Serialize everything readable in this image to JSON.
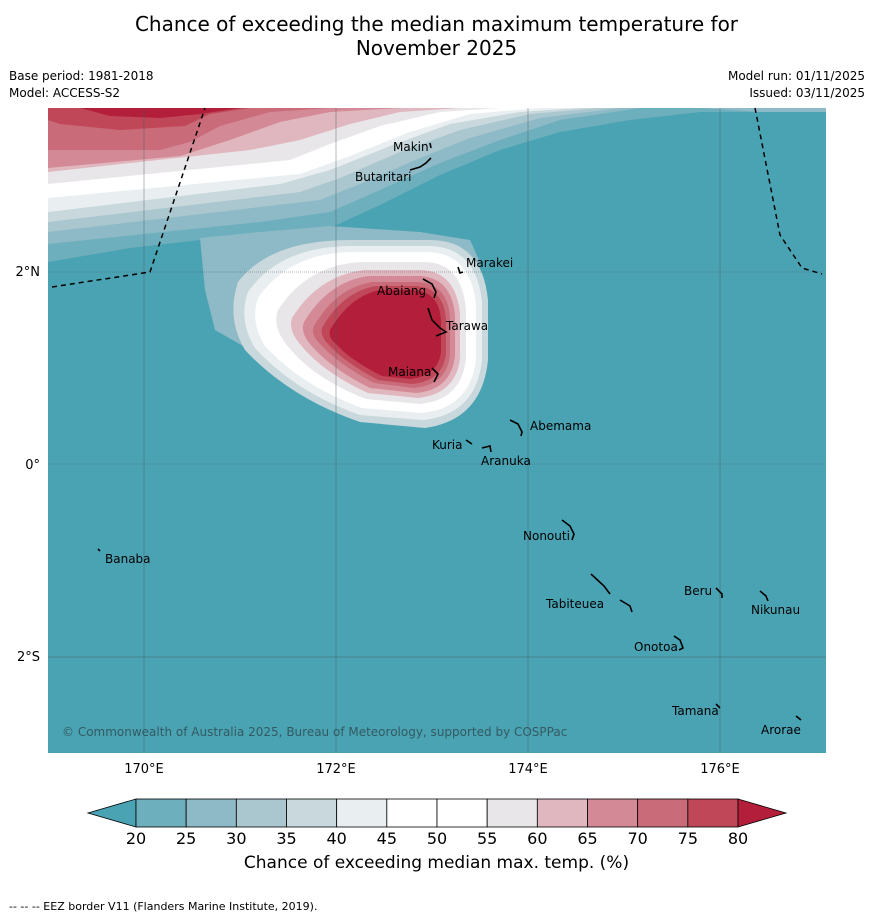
{
  "title": {
    "line1": "Chance of exceeding the median maximum temperature for",
    "line2": "November 2025"
  },
  "meta": {
    "base_period": "Base period: 1981-2018",
    "model": "Model: ACCESS-S2",
    "model_run": "Model run: 01/11/2025",
    "issued": "Issued: 03/11/2025"
  },
  "map": {
    "lon_ticks": [
      "170°E",
      "172°E",
      "174°E",
      "176°E"
    ],
    "lat_ticks": [
      "2°N",
      "0°",
      "2°S"
    ],
    "copyright": "© Commonwealth of Australia 2025, Bureau of Meteorology, supported by COSPPac",
    "places": [
      {
        "name": "Makin"
      },
      {
        "name": "Butaritari"
      },
      {
        "name": "Marakei"
      },
      {
        "name": "Abaiang"
      },
      {
        "name": "Tarawa"
      },
      {
        "name": "Maiana"
      },
      {
        "name": "Abemama"
      },
      {
        "name": "Kuria"
      },
      {
        "name": "Aranuka"
      },
      {
        "name": "Nonouti"
      },
      {
        "name": "Banaba"
      },
      {
        "name": "Beru"
      },
      {
        "name": "Nikunau"
      },
      {
        "name": "Tabiteuea"
      },
      {
        "name": "Onotoa"
      },
      {
        "name": "Tamana"
      },
      {
        "name": "Arorae"
      }
    ]
  },
  "legend": {
    "ticks": [
      "20",
      "25",
      "30",
      "35",
      "40",
      "45",
      "50",
      "55",
      "60",
      "65",
      "70",
      "75",
      "80"
    ],
    "title": "Chance of exceeding median max. temp. (%)",
    "colors": [
      "#4aa3b3",
      "#6eafbd",
      "#8dbac6",
      "#aac7cf",
      "#c9d8dc",
      "#e9eff1",
      "#ffffff",
      "#ffffff",
      "#e9e6e9",
      "#e0b6bf",
      "#d48a96",
      "#c96b79",
      "#c04758",
      "#b31e3b"
    ]
  },
  "footer": "--  --  -- EEZ border V11 (Flanders Marine Institute, 2019)."
}
